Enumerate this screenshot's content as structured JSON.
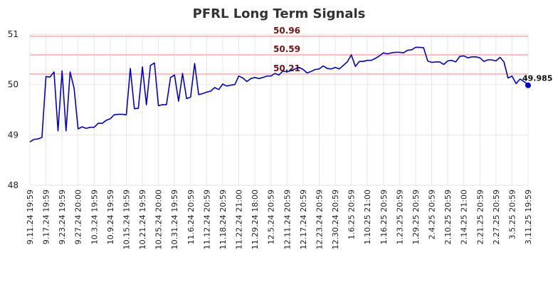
{
  "chart_data": {
    "type": "line",
    "title": "PFRL Long Term Signals",
    "xlabel": "",
    "ylabel": "",
    "ylim": [
      48,
      51
    ],
    "yticks": [
      48,
      49,
      50,
      51
    ],
    "grid": true,
    "colors": {
      "line": "#0000cc",
      "ref_line": "#ffbbbb",
      "ref_label": "#7a1010",
      "grid": "#e6e6e6"
    },
    "x_tick_labels": [
      "9.11.24 19:59",
      "9.17.24 19:59",
      "9.23.24 19:59",
      "9.27.24 20:00",
      "10.3.24 19:59",
      "10.9.24 19:59",
      "10.15.24 19:59",
      "10.21.24 19:59",
      "10.25.24 20:00",
      "10.31.24 19:59",
      "11.6.24 20:59",
      "11.12.24 20:59",
      "11.18.24 20:59",
      "11.22.24 21:00",
      "11.29.24 18:00",
      "12.5.24 20:59",
      "12.11.24 20:59",
      "12.17.24 20:59",
      "12.23.24 20:59",
      "12.30.24 20:59",
      "1.6.25 20:59",
      "1.10.25 21:00",
      "1.16.25 20:59",
      "1.23.25 20:59",
      "1.29.25 20:59",
      "2.4.25 20:59",
      "2.10.25 20:59",
      "2.14.25 21:00",
      "2.21.25 20:59",
      "2.27.25 20:59",
      "3.5.25 20:59",
      "3.11.25 19:59"
    ],
    "reference_lines": [
      {
        "value": 50.96,
        "label": "50.96"
      },
      {
        "value": 50.59,
        "label": "50.59"
      },
      {
        "value": 50.21,
        "label": "50.21"
      }
    ],
    "last_value_label": "49.985",
    "series": [
      {
        "values": [
          48.86,
          48.91,
          48.92,
          48.95,
          50.16,
          50.15,
          50.25,
          49.08,
          50.27,
          49.08,
          50.25,
          49.93,
          49.12,
          49.16,
          49.13,
          49.15,
          49.15,
          49.23,
          49.23,
          49.29,
          49.32,
          49.4,
          49.41,
          49.41,
          49.4,
          50.32,
          49.52,
          49.53,
          50.35,
          49.6,
          50.38,
          50.43,
          49.58,
          49.6,
          49.6,
          50.14,
          50.19,
          49.67,
          50.22,
          49.72,
          49.75,
          50.42,
          49.8,
          49.82,
          49.85,
          49.87,
          49.94,
          49.9,
          50.01,
          49.97,
          49.99,
          50.0,
          50.17,
          50.13,
          50.06,
          50.12,
          50.14,
          50.12,
          50.14,
          50.17,
          50.17,
          50.22,
          50.19,
          50.27,
          50.25,
          50.28,
          50.31,
          50.34,
          50.3,
          50.23,
          50.26,
          50.3,
          50.31,
          50.37,
          50.32,
          50.31,
          50.34,
          50.31,
          50.38,
          50.45,
          50.59,
          50.36,
          50.46,
          50.46,
          50.48,
          50.48,
          50.52,
          50.57,
          50.63,
          50.61,
          50.63,
          50.64,
          50.64,
          50.63,
          50.68,
          50.69,
          50.74,
          50.74,
          50.73,
          50.47,
          50.44,
          50.45,
          50.45,
          50.4,
          50.47,
          50.48,
          50.45,
          50.56,
          50.57,
          50.53,
          50.55,
          50.55,
          50.53,
          50.46,
          50.49,
          50.49,
          50.47,
          50.54,
          50.45,
          50.13,
          50.17,
          50.02,
          50.11,
          50.06,
          49.985
        ]
      }
    ]
  }
}
